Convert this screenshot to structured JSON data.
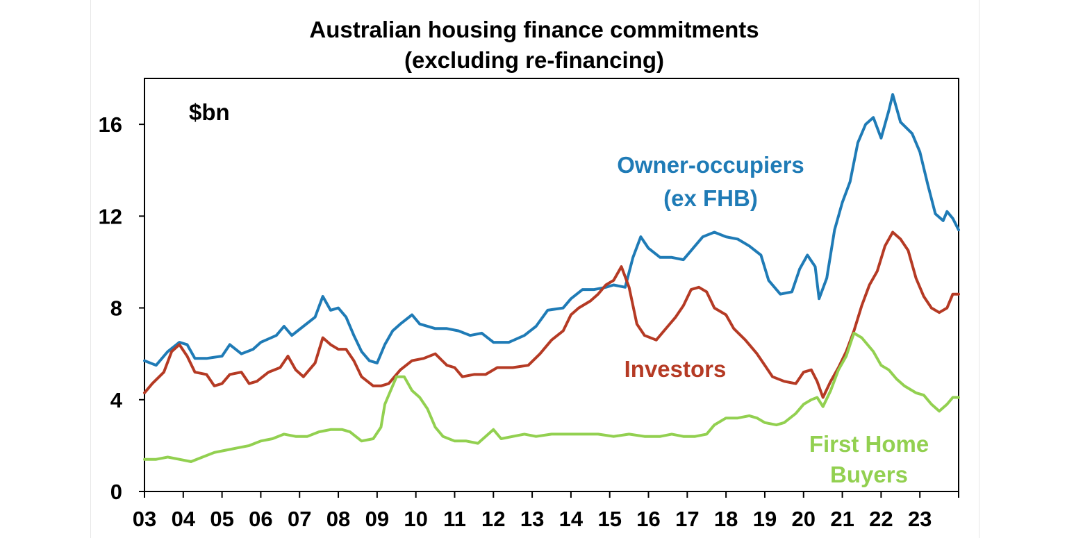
{
  "chart_data": {
    "type": "line",
    "title": "Australian housing finance commitments",
    "subtitle": "(excluding re-financing)",
    "unit_label": "$bn",
    "ylim": [
      0,
      18
    ],
    "y_ticks": [
      "0",
      "4",
      "8",
      "12",
      "16"
    ],
    "x_tick_labels": [
      "03",
      "04",
      "05",
      "06",
      "07",
      "08",
      "09",
      "10",
      "11",
      "12",
      "13",
      "14",
      "15",
      "16",
      "17",
      "18",
      "19",
      "20",
      "21",
      "22",
      "23"
    ],
    "xlim": [
      2003.0,
      2024.0
    ],
    "grid": false,
    "series": [
      {
        "name": "Owner-occupiers (ex FHB)",
        "color": "#1f7bb6",
        "points": [
          [
            2003.0,
            5.7
          ],
          [
            2003.3,
            5.5
          ],
          [
            2003.6,
            6.1
          ],
          [
            2003.9,
            6.5
          ],
          [
            2004.1,
            6.4
          ],
          [
            2004.3,
            5.8
          ],
          [
            2004.6,
            5.8
          ],
          [
            2005.0,
            5.9
          ],
          [
            2005.2,
            6.4
          ],
          [
            2005.5,
            6.0
          ],
          [
            2005.8,
            6.2
          ],
          [
            2006.0,
            6.5
          ],
          [
            2006.4,
            6.8
          ],
          [
            2006.6,
            7.2
          ],
          [
            2006.8,
            6.8
          ],
          [
            2007.1,
            7.2
          ],
          [
            2007.4,
            7.6
          ],
          [
            2007.6,
            8.5
          ],
          [
            2007.8,
            7.9
          ],
          [
            2008.0,
            8.0
          ],
          [
            2008.2,
            7.6
          ],
          [
            2008.4,
            6.8
          ],
          [
            2008.6,
            6.1
          ],
          [
            2008.8,
            5.7
          ],
          [
            2009.0,
            5.6
          ],
          [
            2009.2,
            6.4
          ],
          [
            2009.4,
            7.0
          ],
          [
            2009.6,
            7.3
          ],
          [
            2009.9,
            7.7
          ],
          [
            2010.1,
            7.3
          ],
          [
            2010.5,
            7.1
          ],
          [
            2010.8,
            7.1
          ],
          [
            2011.1,
            7.0
          ],
          [
            2011.4,
            6.8
          ],
          [
            2011.7,
            6.9
          ],
          [
            2012.0,
            6.5
          ],
          [
            2012.4,
            6.5
          ],
          [
            2012.8,
            6.8
          ],
          [
            2013.1,
            7.2
          ],
          [
            2013.4,
            7.9
          ],
          [
            2013.8,
            8.0
          ],
          [
            2014.0,
            8.4
          ],
          [
            2014.3,
            8.8
          ],
          [
            2014.6,
            8.8
          ],
          [
            2014.9,
            8.9
          ],
          [
            2015.1,
            9.0
          ],
          [
            2015.4,
            8.9
          ],
          [
            2015.6,
            10.2
          ],
          [
            2015.8,
            11.1
          ],
          [
            2016.0,
            10.6
          ],
          [
            2016.3,
            10.2
          ],
          [
            2016.6,
            10.2
          ],
          [
            2016.9,
            10.1
          ],
          [
            2017.2,
            10.7
          ],
          [
            2017.4,
            11.1
          ],
          [
            2017.7,
            11.3
          ],
          [
            2018.0,
            11.1
          ],
          [
            2018.3,
            11.0
          ],
          [
            2018.6,
            10.7
          ],
          [
            2018.9,
            10.3
          ],
          [
            2019.1,
            9.2
          ],
          [
            2019.4,
            8.6
          ],
          [
            2019.7,
            8.7
          ],
          [
            2019.9,
            9.7
          ],
          [
            2020.1,
            10.3
          ],
          [
            2020.3,
            9.8
          ],
          [
            2020.4,
            8.4
          ],
          [
            2020.6,
            9.3
          ],
          [
            2020.8,
            11.4
          ],
          [
            2021.0,
            12.6
          ],
          [
            2021.2,
            13.5
          ],
          [
            2021.4,
            15.2
          ],
          [
            2021.6,
            16.0
          ],
          [
            2021.8,
            16.3
          ],
          [
            2022.0,
            15.4
          ],
          [
            2022.2,
            16.6
          ],
          [
            2022.3,
            17.3
          ],
          [
            2022.5,
            16.1
          ],
          [
            2022.8,
            15.6
          ],
          [
            2023.0,
            14.8
          ],
          [
            2023.2,
            13.4
          ],
          [
            2023.4,
            12.1
          ],
          [
            2023.6,
            11.8
          ],
          [
            2023.7,
            12.2
          ],
          [
            2023.85,
            11.9
          ],
          [
            2024.0,
            11.4
          ]
        ]
      },
      {
        "name": "Investors",
        "color": "#b53a24",
        "points": [
          [
            2003.0,
            4.3
          ],
          [
            2003.2,
            4.7
          ],
          [
            2003.5,
            5.2
          ],
          [
            2003.7,
            6.1
          ],
          [
            2003.9,
            6.4
          ],
          [
            2004.1,
            5.9
          ],
          [
            2004.3,
            5.2
          ],
          [
            2004.6,
            5.1
          ],
          [
            2004.8,
            4.6
          ],
          [
            2005.0,
            4.7
          ],
          [
            2005.2,
            5.1
          ],
          [
            2005.5,
            5.2
          ],
          [
            2005.7,
            4.7
          ],
          [
            2005.9,
            4.8
          ],
          [
            2006.2,
            5.2
          ],
          [
            2006.5,
            5.4
          ],
          [
            2006.7,
            5.9
          ],
          [
            2006.9,
            5.3
          ],
          [
            2007.1,
            5.0
          ],
          [
            2007.4,
            5.6
          ],
          [
            2007.6,
            6.7
          ],
          [
            2007.8,
            6.4
          ],
          [
            2008.0,
            6.2
          ],
          [
            2008.2,
            6.2
          ],
          [
            2008.4,
            5.7
          ],
          [
            2008.6,
            5.0
          ],
          [
            2008.9,
            4.6
          ],
          [
            2009.1,
            4.6
          ],
          [
            2009.3,
            4.7
          ],
          [
            2009.6,
            5.3
          ],
          [
            2009.9,
            5.7
          ],
          [
            2010.2,
            5.8
          ],
          [
            2010.5,
            6.0
          ],
          [
            2010.8,
            5.5
          ],
          [
            2011.0,
            5.4
          ],
          [
            2011.2,
            5.0
          ],
          [
            2011.5,
            5.1
          ],
          [
            2011.8,
            5.1
          ],
          [
            2012.1,
            5.4
          ],
          [
            2012.5,
            5.4
          ],
          [
            2012.9,
            5.5
          ],
          [
            2013.2,
            6.0
          ],
          [
            2013.5,
            6.6
          ],
          [
            2013.8,
            7.0
          ],
          [
            2014.0,
            7.7
          ],
          [
            2014.2,
            8.0
          ],
          [
            2014.5,
            8.3
          ],
          [
            2014.7,
            8.6
          ],
          [
            2014.9,
            9.0
          ],
          [
            2015.1,
            9.2
          ],
          [
            2015.3,
            9.8
          ],
          [
            2015.5,
            8.9
          ],
          [
            2015.7,
            7.3
          ],
          [
            2015.9,
            6.8
          ],
          [
            2016.2,
            6.6
          ],
          [
            2016.5,
            7.2
          ],
          [
            2016.7,
            7.6
          ],
          [
            2016.9,
            8.1
          ],
          [
            2017.1,
            8.8
          ],
          [
            2017.3,
            8.9
          ],
          [
            2017.5,
            8.7
          ],
          [
            2017.7,
            8.0
          ],
          [
            2018.0,
            7.7
          ],
          [
            2018.2,
            7.1
          ],
          [
            2018.5,
            6.6
          ],
          [
            2018.8,
            6.0
          ],
          [
            2019.0,
            5.5
          ],
          [
            2019.2,
            5.0
          ],
          [
            2019.5,
            4.8
          ],
          [
            2019.8,
            4.7
          ],
          [
            2020.0,
            5.2
          ],
          [
            2020.2,
            5.3
          ],
          [
            2020.35,
            4.8
          ],
          [
            2020.5,
            4.1
          ],
          [
            2020.7,
            4.8
          ],
          [
            2020.9,
            5.4
          ],
          [
            2021.1,
            6.1
          ],
          [
            2021.3,
            7.0
          ],
          [
            2021.5,
            8.1
          ],
          [
            2021.7,
            9.0
          ],
          [
            2021.9,
            9.6
          ],
          [
            2022.1,
            10.7
          ],
          [
            2022.3,
            11.3
          ],
          [
            2022.5,
            11.0
          ],
          [
            2022.7,
            10.5
          ],
          [
            2022.9,
            9.3
          ],
          [
            2023.1,
            8.5
          ],
          [
            2023.3,
            8.0
          ],
          [
            2023.5,
            7.8
          ],
          [
            2023.7,
            8.0
          ],
          [
            2023.85,
            8.6
          ],
          [
            2024.0,
            8.6
          ]
        ]
      },
      {
        "name": "First Home Buyers",
        "color": "#92d050",
        "points": [
          [
            2003.0,
            1.4
          ],
          [
            2003.3,
            1.4
          ],
          [
            2003.6,
            1.5
          ],
          [
            2003.9,
            1.4
          ],
          [
            2004.2,
            1.3
          ],
          [
            2004.5,
            1.5
          ],
          [
            2004.8,
            1.7
          ],
          [
            2005.1,
            1.8
          ],
          [
            2005.4,
            1.9
          ],
          [
            2005.7,
            2.0
          ],
          [
            2006.0,
            2.2
          ],
          [
            2006.3,
            2.3
          ],
          [
            2006.6,
            2.5
          ],
          [
            2006.9,
            2.4
          ],
          [
            2007.2,
            2.4
          ],
          [
            2007.5,
            2.6
          ],
          [
            2007.8,
            2.7
          ],
          [
            2008.1,
            2.7
          ],
          [
            2008.3,
            2.6
          ],
          [
            2008.6,
            2.2
          ],
          [
            2008.9,
            2.3
          ],
          [
            2009.1,
            2.8
          ],
          [
            2009.2,
            3.8
          ],
          [
            2009.4,
            4.6
          ],
          [
            2009.5,
            5.0
          ],
          [
            2009.7,
            5.0
          ],
          [
            2009.9,
            4.4
          ],
          [
            2010.1,
            4.1
          ],
          [
            2010.3,
            3.6
          ],
          [
            2010.5,
            2.8
          ],
          [
            2010.7,
            2.4
          ],
          [
            2011.0,
            2.2
          ],
          [
            2011.3,
            2.2
          ],
          [
            2011.6,
            2.1
          ],
          [
            2011.8,
            2.4
          ],
          [
            2012.0,
            2.7
          ],
          [
            2012.2,
            2.3
          ],
          [
            2012.5,
            2.4
          ],
          [
            2012.8,
            2.5
          ],
          [
            2013.1,
            2.4
          ],
          [
            2013.5,
            2.5
          ],
          [
            2013.9,
            2.5
          ],
          [
            2014.3,
            2.5
          ],
          [
            2014.7,
            2.5
          ],
          [
            2015.1,
            2.4
          ],
          [
            2015.5,
            2.5
          ],
          [
            2015.9,
            2.4
          ],
          [
            2016.3,
            2.4
          ],
          [
            2016.6,
            2.5
          ],
          [
            2016.9,
            2.4
          ],
          [
            2017.2,
            2.4
          ],
          [
            2017.5,
            2.5
          ],
          [
            2017.7,
            2.9
          ],
          [
            2018.0,
            3.2
          ],
          [
            2018.3,
            3.2
          ],
          [
            2018.6,
            3.3
          ],
          [
            2018.8,
            3.2
          ],
          [
            2019.0,
            3.0
          ],
          [
            2019.3,
            2.9
          ],
          [
            2019.5,
            3.0
          ],
          [
            2019.8,
            3.4
          ],
          [
            2020.0,
            3.8
          ],
          [
            2020.2,
            4.0
          ],
          [
            2020.35,
            4.1
          ],
          [
            2020.5,
            3.7
          ],
          [
            2020.7,
            4.4
          ],
          [
            2020.9,
            5.3
          ],
          [
            2021.1,
            5.9
          ],
          [
            2021.2,
            6.4
          ],
          [
            2021.3,
            6.9
          ],
          [
            2021.5,
            6.7
          ],
          [
            2021.8,
            6.1
          ],
          [
            2022.0,
            5.5
          ],
          [
            2022.2,
            5.3
          ],
          [
            2022.4,
            4.9
          ],
          [
            2022.6,
            4.6
          ],
          [
            2022.9,
            4.3
          ],
          [
            2023.1,
            4.2
          ],
          [
            2023.3,
            3.8
          ],
          [
            2023.5,
            3.5
          ],
          [
            2023.7,
            3.8
          ],
          [
            2023.85,
            4.1
          ],
          [
            2024.0,
            4.1
          ]
        ]
      }
    ],
    "annotations": [
      {
        "text": "Owner-occupiers",
        "series": "Owner-occupiers (ex FHB)"
      },
      {
        "text": "(ex FHB)",
        "series": "Owner-occupiers (ex FHB)"
      },
      {
        "text": "Investors",
        "series": "Investors"
      },
      {
        "text": "First Home",
        "series": "First Home Buyers"
      },
      {
        "text": "Buyers",
        "series": "First Home Buyers"
      }
    ]
  }
}
